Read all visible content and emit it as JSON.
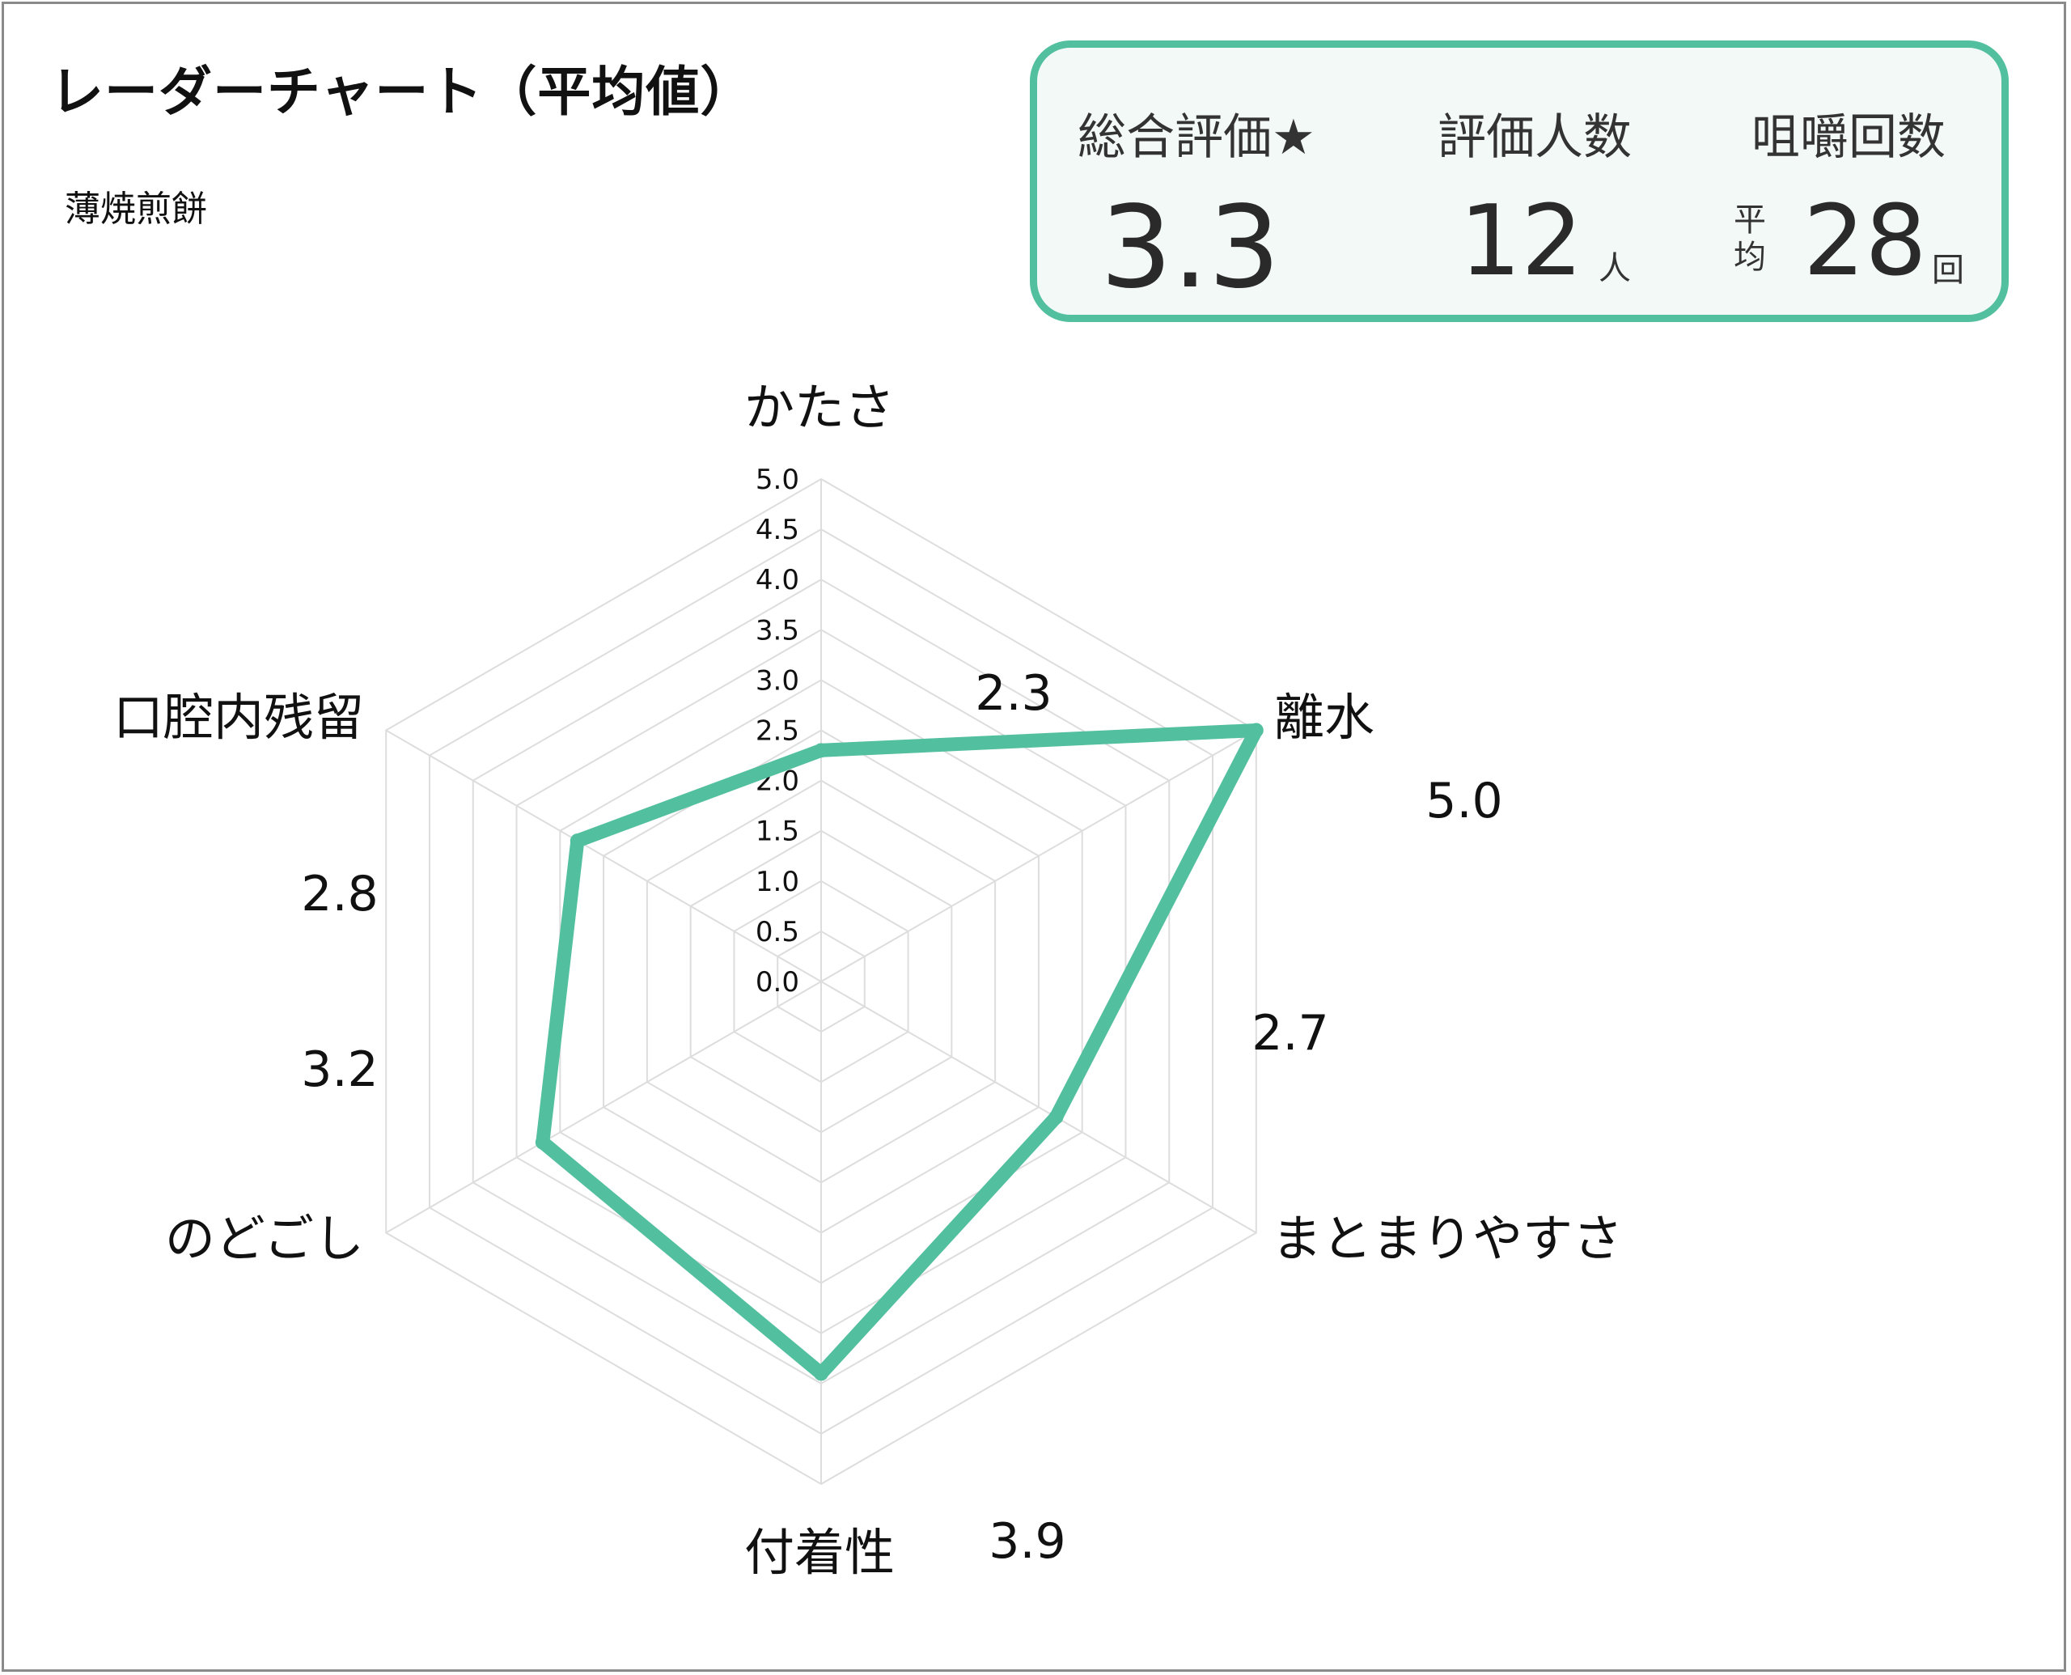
{
  "title": "レーダーチャート（平均値）",
  "subtitle": "薄焼煎餅",
  "summary": {
    "rating_label": "総合評価★",
    "rating_value": "3.3",
    "people_label": "評価人数",
    "people_value": "12",
    "people_unit": "人",
    "chew_label": "咀嚼回数",
    "chew_avg_1": "平",
    "chew_avg_2": "均",
    "chew_value": "28",
    "chew_unit": "回"
  },
  "colors": {
    "accent": "#52bf9f",
    "grid": "#dddddd",
    "panel_bg": "#f3f9f7"
  },
  "chart_data": {
    "type": "radar",
    "categories": [
      "かたさ",
      "離水",
      "まとまりやすさ",
      "付着性",
      "のどごし",
      "口腔内残留"
    ],
    "values": [
      2.3,
      5.0,
      2.7,
      3.9,
      3.2,
      2.8
    ],
    "value_labels": [
      "2.3",
      "5.0",
      "2.7",
      "3.9",
      "3.2",
      "2.8"
    ],
    "rlim": [
      0,
      5
    ],
    "ticks": [
      "0.0",
      "0.5",
      "1.0",
      "1.5",
      "2.0",
      "2.5",
      "3.0",
      "3.5",
      "4.0",
      "4.5",
      "5.0"
    ],
    "grid": true
  }
}
